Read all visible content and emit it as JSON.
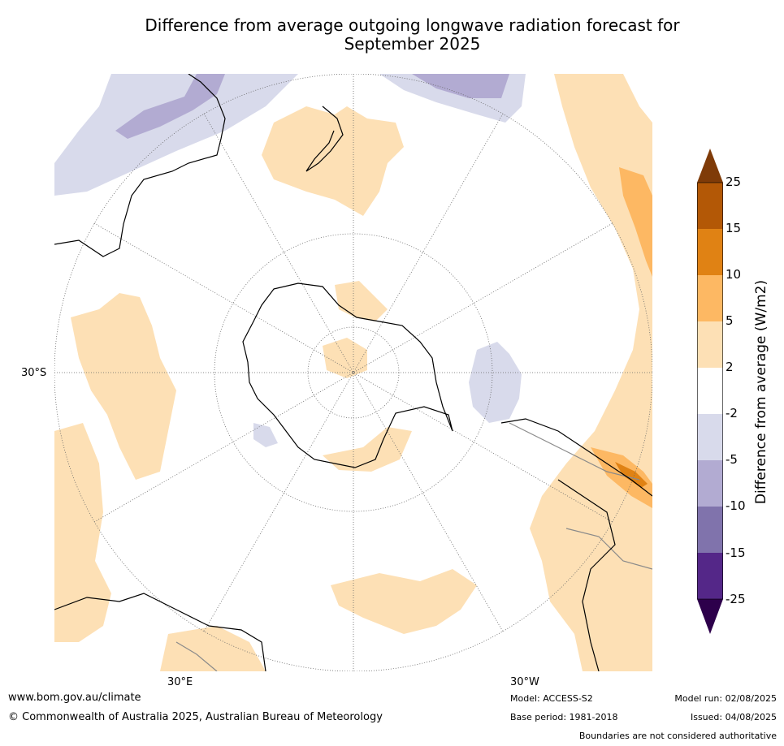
{
  "title_line1": "Difference from average outgoing longwave radiation forecast for",
  "title_line2": "September 2025",
  "map": {
    "lat_label": "30°S",
    "lon_label_e": "30°E",
    "lon_label_w": "30°W",
    "projection": "south-polar-stereographic",
    "colors": {
      "land": "#000000",
      "boundary": "#8a8a8a",
      "grid": "#666666",
      "positive_2_5": "#fde0b5",
      "positive_5_10": "#fdb863",
      "positive_10_15": "#e08214",
      "negative_2_5": "#d8daeb",
      "negative_5_10": "#b2abd2"
    }
  },
  "colorbar": {
    "title": "Difference from average (W/m2)",
    "ticks": [
      "25",
      "15",
      "10",
      "5",
      "2",
      "-2",
      "-5",
      "-10",
      "-15",
      "-25"
    ],
    "colors": [
      "#7f3b08",
      "#b35806",
      "#e08214",
      "#fdb863",
      "#fde0b5",
      "#ffffff",
      "#d8daeb",
      "#b2abd2",
      "#8073ac",
      "#542788",
      "#2d004b"
    ]
  },
  "footer": {
    "website": "www.bom.gov.au/climate",
    "copyright": "© Commonwealth of Australia 2025, Australian Bureau of Meteorology",
    "model": "Model: ACCESS-S2",
    "base_period": "Base period: 1981-2018",
    "model_run": "Model run: 02/08/2025",
    "issued": "Issued: 04/08/2025",
    "disclaimer": "Boundaries are not considered authoritative"
  }
}
